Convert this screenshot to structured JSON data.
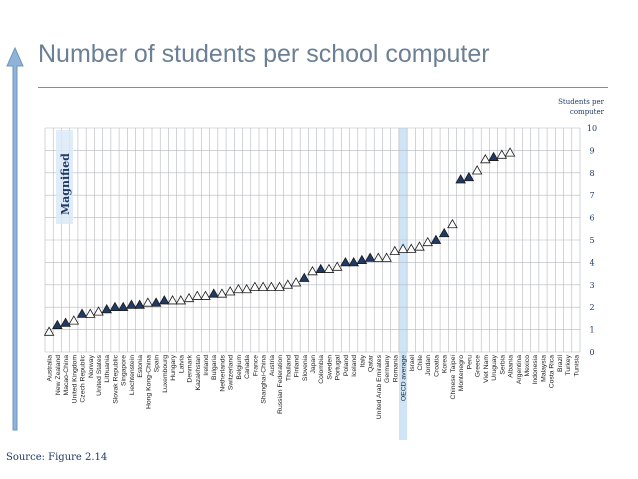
{
  "page": {
    "title": "Number of students per school computer",
    "source": "Source: Figure 2.14"
  },
  "colors": {
    "title": "#6b7f95",
    "grid": "#b5b8bc",
    "filled_marker": "#1f3a66",
    "oecd_highlight": "#cfe4f7",
    "axis_text": "#1f3a66",
    "magnified_label": "#1f3a66",
    "arrow": "#8fb3d9"
  },
  "chart_data": {
    "type": "scatter",
    "title": "Number of students per school computer",
    "ylabel": "Students per computer",
    "ylim": [
      0,
      10
    ],
    "yticks": [
      0,
      1,
      2,
      3,
      4,
      5,
      6,
      7,
      8,
      9,
      10
    ],
    "annotation": "Magnified",
    "highlight_category": "OECD average",
    "categories": [
      "Australia",
      "New Zealand",
      "Macao-China",
      "United Kingdom",
      "Czech Republic",
      "Norway",
      "United States",
      "Lithuania",
      "Slovak Republic",
      "Singapore",
      "Liechtenstein",
      "Estonia",
      "Hong Kong-China",
      "Spain",
      "Luxembourg",
      "Hungary",
      "Latvia",
      "Denmark",
      "Kazakhstan",
      "Ireland",
      "Bulgaria",
      "Netherlands",
      "Switzerland",
      "Belgium",
      "Canada",
      "France",
      "Shanghai-China",
      "Austria",
      "Russian Federation",
      "Thailand",
      "Finland",
      "Slovenia",
      "Japan",
      "Colombia",
      "Sweden",
      "Portugal",
      "Poland",
      "Iceland",
      "Italy",
      "Qatar",
      "United Arab Emirates",
      "Germany",
      "Romania",
      "OECD average",
      "Israel",
      "Chile",
      "Jordan",
      "Croatia",
      "Korea",
      "Chinese Taipei",
      "Montenegro",
      "Peru",
      "Greece",
      "Viet Nam",
      "Uruguay",
      "Serbia",
      "Albania",
      "Argentina",
      "Mexico",
      "Indonesia",
      "Malaysia",
      "Costa Rica",
      "Brazil",
      "Turkey",
      "Tunisia"
    ],
    "values": [
      0.9,
      1.2,
      1.3,
      1.4,
      1.7,
      1.7,
      1.8,
      1.9,
      2.0,
      2.0,
      2.1,
      2.1,
      2.2,
      2.2,
      2.3,
      2.3,
      2.3,
      2.4,
      2.5,
      2.5,
      2.6,
      2.6,
      2.7,
      2.8,
      2.8,
      2.9,
      2.9,
      2.9,
      2.9,
      3.0,
      3.1,
      3.3,
      3.6,
      3.7,
      3.7,
      3.8,
      4.0,
      4.0,
      4.1,
      4.2,
      4.2,
      4.2,
      4.5,
      4.6,
      4.6,
      4.7,
      4.9,
      5.0,
      5.3,
      5.7,
      7.7,
      7.8,
      8.1,
      8.6,
      8.7,
      8.8,
      8.9,
      null,
      null,
      null,
      null,
      null,
      null,
      null,
      null
    ],
    "filled": [
      false,
      true,
      true,
      false,
      true,
      false,
      false,
      true,
      true,
      true,
      true,
      true,
      false,
      true,
      true,
      false,
      false,
      false,
      false,
      false,
      true,
      false,
      false,
      false,
      false,
      false,
      false,
      false,
      false,
      false,
      false,
      true,
      false,
      true,
      false,
      false,
      true,
      true,
      true,
      true,
      false,
      false,
      false,
      false,
      false,
      false,
      false,
      true,
      true,
      false,
      true,
      true,
      false,
      false,
      true,
      false,
      false,
      false,
      false,
      false,
      false,
      false,
      false,
      false,
      false
    ]
  }
}
